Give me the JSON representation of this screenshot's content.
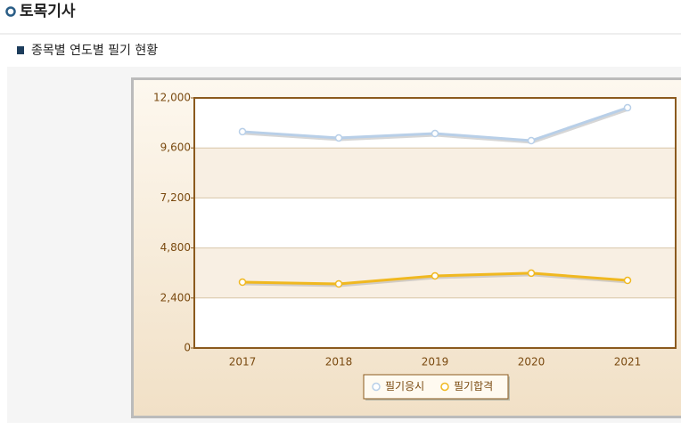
{
  "header": {
    "title": "토목기사"
  },
  "section": {
    "title": "종목별 연도별 필기 현황"
  },
  "chart_data": {
    "type": "line",
    "categories": [
      "2017",
      "2018",
      "2019",
      "2020",
      "2021"
    ],
    "series": [
      {
        "name": "필기응시",
        "color": "#b8cfe8",
        "values": [
          10380,
          10080,
          10290,
          9950,
          11530
        ]
      },
      {
        "name": "필기합격",
        "color": "#f0b820",
        "values": [
          3160,
          3075,
          3460,
          3590,
          3245
        ]
      }
    ],
    "ylim": [
      0,
      12000
    ],
    "yticks": [
      0,
      {
        "value": 2400,
        "label": "2,400"
      },
      {
        "value": 4800,
        "label": "4,800"
      },
      {
        "value": 7200,
        "label": "7,200"
      },
      {
        "value": 9600,
        "label": "9,600"
      },
      {
        "value": 12000,
        "label": "12,000"
      }
    ],
    "grid": true,
    "legend": "bottom"
  }
}
